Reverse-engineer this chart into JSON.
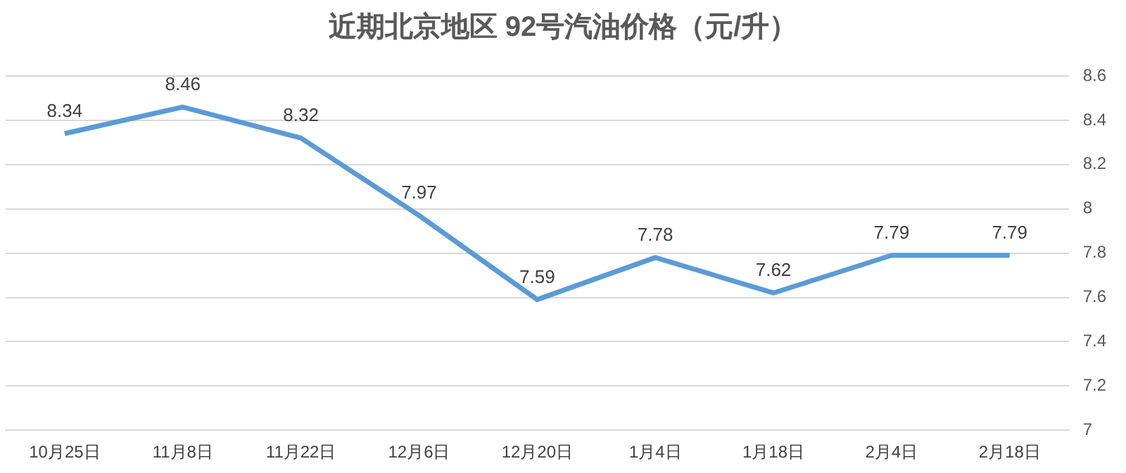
{
  "chart_data": {
    "type": "line",
    "title": "近期北京地区 92号汽油价格（元/升）",
    "categories": [
      "10月25日",
      "11月8日",
      "11月22日",
      "12月6日",
      "12月20日",
      "1月4日",
      "1月18日",
      "2月4日",
      "2月18日"
    ],
    "values": [
      8.34,
      8.46,
      8.32,
      7.97,
      7.59,
      7.78,
      7.62,
      7.79,
      7.79
    ],
    "color": "#5b9bd5",
    "ylim": [
      7,
      8.6
    ],
    "yticks": [
      7,
      7.2,
      7.4,
      7.6,
      7.8,
      8,
      8.2,
      8.4,
      8.6
    ],
    "grid": "y",
    "data_labels": true,
    "legend": false,
    "marker": "none"
  }
}
